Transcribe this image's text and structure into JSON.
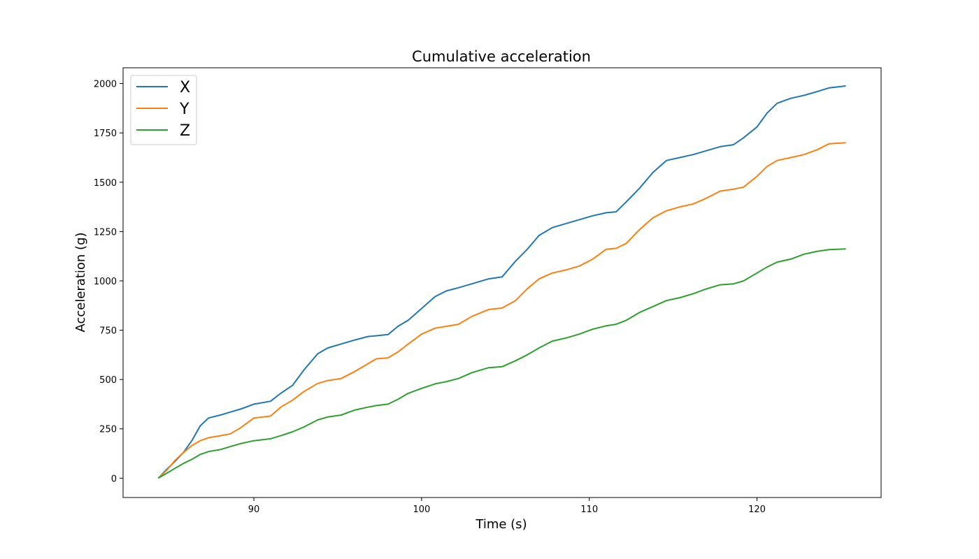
{
  "chart_data": {
    "type": "line",
    "title": "Cumulative acceleration",
    "xlabel": "Time (s)",
    "ylabel": "Acceleration (g)",
    "xlim": [
      82.2,
      127.4
    ],
    "ylim": [
      -98,
      2080
    ],
    "xticks": [
      90,
      100,
      110,
      120
    ],
    "yticks": [
      0,
      250,
      500,
      750,
      1000,
      1250,
      1500,
      1750,
      2000
    ],
    "grid": false,
    "legend_position": "top-left",
    "series": [
      {
        "name": "X",
        "color": "#1f77b4",
        "x": [
          84.3,
          84.8,
          85.3,
          85.8,
          86.3,
          86.8,
          87.3,
          88.0,
          88.6,
          89.2,
          90.0,
          91.0,
          91.6,
          92.3,
          93.0,
          93.8,
          94.4,
          95.2,
          96.0,
          96.8,
          97.3,
          98.0,
          98.6,
          99.2,
          100.0,
          100.8,
          101.5,
          102.2,
          103.0,
          104.0,
          104.8,
          105.6,
          106.3,
          107.0,
          107.8,
          108.6,
          109.4,
          110.2,
          111.0,
          111.6,
          112.2,
          113.0,
          113.8,
          114.6,
          115.4,
          116.2,
          117.0,
          117.8,
          118.6,
          119.2,
          120.0,
          120.6,
          121.2,
          122.0,
          122.8,
          123.6,
          124.3,
          125.3
        ],
        "y": [
          0,
          45,
          85,
          130,
          190,
          265,
          305,
          320,
          335,
          350,
          375,
          390,
          430,
          470,
          550,
          630,
          660,
          680,
          700,
          718,
          722,
          728,
          770,
          800,
          860,
          920,
          950,
          965,
          985,
          1010,
          1020,
          1100,
          1160,
          1230,
          1270,
          1290,
          1310,
          1330,
          1345,
          1350,
          1400,
          1470,
          1550,
          1610,
          1625,
          1640,
          1660,
          1680,
          1690,
          1725,
          1780,
          1850,
          1900,
          1925,
          1940,
          1960,
          1978,
          1988
        ]
      },
      {
        "name": "Y",
        "color": "#ff7f0e",
        "x": [
          84.3,
          84.8,
          85.3,
          85.8,
          86.3,
          86.8,
          87.3,
          88.0,
          88.6,
          89.2,
          90.0,
          91.0,
          91.6,
          92.3,
          93.0,
          93.8,
          94.4,
          95.2,
          96.0,
          96.8,
          97.3,
          98.0,
          98.6,
          99.2,
          100.0,
          100.8,
          101.5,
          102.2,
          103.0,
          104.0,
          104.8,
          105.6,
          106.3,
          107.0,
          107.8,
          108.6,
          109.4,
          110.2,
          111.0,
          111.6,
          112.2,
          113.0,
          113.8,
          114.6,
          115.4,
          116.2,
          117.0,
          117.8,
          118.6,
          119.2,
          120.0,
          120.6,
          121.2,
          122.0,
          122.8,
          123.6,
          124.3,
          125.3
        ],
        "y": [
          0,
          40,
          90,
          130,
          165,
          190,
          205,
          215,
          225,
          255,
          305,
          315,
          360,
          395,
          440,
          480,
          495,
          505,
          540,
          580,
          605,
          610,
          640,
          680,
          730,
          760,
          770,
          780,
          820,
          855,
          862,
          900,
          960,
          1010,
          1040,
          1055,
          1075,
          1110,
          1160,
          1165,
          1190,
          1260,
          1320,
          1355,
          1375,
          1390,
          1420,
          1455,
          1465,
          1475,
          1530,
          1580,
          1610,
          1625,
          1640,
          1665,
          1695,
          1700
        ]
      },
      {
        "name": "Z",
        "color": "#2ca02c",
        "x": [
          84.3,
          84.8,
          85.3,
          85.8,
          86.3,
          86.8,
          87.3,
          88.0,
          88.6,
          89.2,
          90.0,
          91.0,
          91.6,
          92.3,
          93.0,
          93.8,
          94.4,
          95.2,
          96.0,
          96.8,
          97.3,
          98.0,
          98.6,
          99.2,
          100.0,
          100.8,
          101.5,
          102.2,
          103.0,
          104.0,
          104.8,
          105.6,
          106.3,
          107.0,
          107.8,
          108.6,
          109.4,
          110.2,
          111.0,
          111.6,
          112.2,
          113.0,
          113.8,
          114.6,
          115.4,
          116.2,
          117.0,
          117.8,
          118.6,
          119.2,
          120.0,
          120.6,
          121.2,
          122.0,
          122.8,
          123.6,
          124.3,
          125.3
        ],
        "y": [
          0,
          25,
          50,
          75,
          95,
          120,
          135,
          145,
          160,
          175,
          190,
          200,
          215,
          235,
          260,
          295,
          310,
          320,
          345,
          360,
          368,
          375,
          400,
          430,
          455,
          478,
          490,
          505,
          535,
          560,
          565,
          595,
          625,
          660,
          695,
          710,
          730,
          755,
          772,
          780,
          800,
          840,
          870,
          900,
          915,
          935,
          960,
          980,
          985,
          1000,
          1040,
          1070,
          1095,
          1110,
          1135,
          1150,
          1158,
          1162
        ]
      }
    ]
  }
}
